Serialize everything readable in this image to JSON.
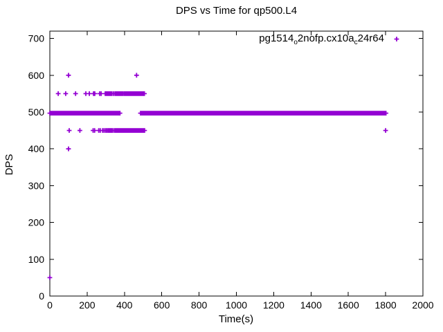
{
  "title": "DPS vs Time for qp500.L4",
  "legend": {
    "position": "top-right",
    "sample_marker": "plus-icon",
    "label_plain": "pg1514_o2nofp.cx10a_c24r64",
    "label_parts": [
      {
        "text": "pg1514",
        "sub": false
      },
      {
        "text": "o",
        "sub": true
      },
      {
        "text": "2nofp.cx10a",
        "sub": false
      },
      {
        "text": "c",
        "sub": true
      },
      {
        "text": "24r64",
        "sub": false
      }
    ]
  },
  "colors": {
    "marker": "#9400D3",
    "frame": "#000000",
    "background": "#ffffff"
  },
  "chart_data": {
    "type": "scatter",
    "title": "DPS vs Time for qp500.L4",
    "xlabel": "Time(s)",
    "ylabel": "DPS",
    "xlim": [
      0,
      2000
    ],
    "ylim": [
      0,
      720
    ],
    "x_ticks": [
      0,
      200,
      400,
      600,
      800,
      1000,
      1200,
      1400,
      1600,
      1800,
      2000
    ],
    "y_ticks": [
      0,
      100,
      200,
      300,
      400,
      500,
      600,
      700
    ],
    "grid": false,
    "legend_position": "top-right",
    "marker": "plus",
    "marker_color": "#9400D3",
    "series": [
      {
        "name": "pg1514_o2nofp.cx10a_c24r64",
        "steady_band": {
          "dps": 497,
          "t_start": 0,
          "t_end": 1803,
          "t_step": 2,
          "gap_centers": [
            393,
            419,
            445,
            468
          ],
          "gap_half_width": 16
        },
        "points": [
          [
            0,
            50
          ],
          [
            100,
            400
          ],
          [
            100,
            600
          ],
          [
            465,
            600
          ],
          [
            45,
            550
          ],
          [
            85,
            550
          ],
          [
            138,
            550
          ],
          [
            193,
            550
          ],
          [
            212,
            550
          ],
          [
            234,
            550
          ],
          [
            241,
            550
          ],
          [
            267,
            550
          ],
          [
            275,
            550
          ],
          [
            297,
            550
          ],
          [
            303,
            550
          ],
          [
            309,
            550
          ],
          [
            315,
            550
          ],
          [
            321,
            550
          ],
          [
            327,
            550
          ],
          [
            333,
            550
          ],
          [
            341,
            550
          ],
          [
            349,
            550
          ],
          [
            356,
            550
          ],
          [
            361,
            550
          ],
          [
            366,
            550
          ],
          [
            371,
            550
          ],
          [
            376,
            550
          ],
          [
            381,
            550
          ],
          [
            386,
            550
          ],
          [
            391,
            550
          ],
          [
            398,
            550
          ],
          [
            404,
            550
          ],
          [
            410,
            550
          ],
          [
            416,
            550
          ],
          [
            422,
            550
          ],
          [
            428,
            550
          ],
          [
            433,
            550
          ],
          [
            438,
            550
          ],
          [
            443,
            550
          ],
          [
            448,
            550
          ],
          [
            453,
            550
          ],
          [
            459,
            550
          ],
          [
            465,
            550
          ],
          [
            471,
            550
          ],
          [
            477,
            550
          ],
          [
            482,
            550
          ],
          [
            487,
            550
          ],
          [
            492,
            550
          ],
          [
            497,
            550
          ],
          [
            502,
            550
          ],
          [
            507,
            550
          ],
          [
            104,
            450
          ],
          [
            161,
            450
          ],
          [
            232,
            450
          ],
          [
            240,
            450
          ],
          [
            262,
            450
          ],
          [
            270,
            450
          ],
          [
            283,
            450
          ],
          [
            291,
            450
          ],
          [
            299,
            450
          ],
          [
            306,
            450
          ],
          [
            313,
            450
          ],
          [
            319,
            450
          ],
          [
            325,
            450
          ],
          [
            331,
            450
          ],
          [
            337,
            450
          ],
          [
            345,
            450
          ],
          [
            352,
            450
          ],
          [
            358,
            450
          ],
          [
            364,
            450
          ],
          [
            370,
            450
          ],
          [
            376,
            450
          ],
          [
            382,
            450
          ],
          [
            388,
            450
          ],
          [
            394,
            450
          ],
          [
            400,
            450
          ],
          [
            406,
            450
          ],
          [
            412,
            450
          ],
          [
            418,
            450
          ],
          [
            424,
            450
          ],
          [
            430,
            450
          ],
          [
            436,
            450
          ],
          [
            442,
            450
          ],
          [
            448,
            450
          ],
          [
            454,
            450
          ],
          [
            460,
            450
          ],
          [
            466,
            450
          ],
          [
            472,
            450
          ],
          [
            478,
            450
          ],
          [
            484,
            450
          ],
          [
            490,
            450
          ],
          [
            496,
            450
          ],
          [
            502,
            450
          ],
          [
            508,
            450
          ],
          [
            1800,
            450
          ]
        ]
      }
    ]
  }
}
